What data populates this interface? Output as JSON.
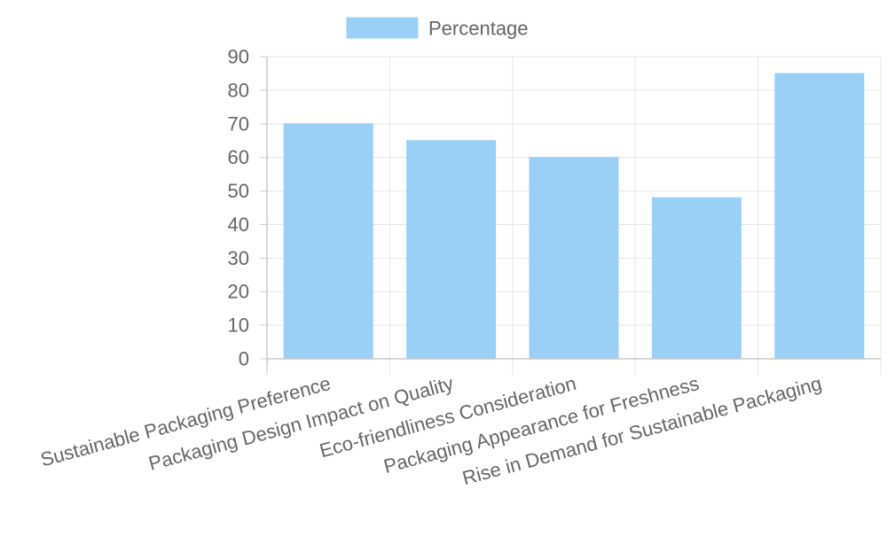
{
  "chart_data": {
    "type": "bar",
    "categories": [
      "Sustainable Packaging Preference",
      "Packaging Design Impact on Quality",
      "Eco-friendliness Consideration",
      "Packaging Appearance for Freshness",
      "Rise in Demand for Sustainable Packaging"
    ],
    "series": [
      {
        "name": "Percentage",
        "values": [
          70,
          65,
          60,
          48,
          85
        ]
      }
    ],
    "ylim": [
      0,
      90
    ],
    "yticks": [
      0,
      10,
      20,
      30,
      40,
      50,
      60,
      70,
      80,
      90
    ],
    "grid": true,
    "legend_position": "top-center",
    "colors": {
      "bar_fill": "#9ad0f5",
      "bar_stroke": "#9ad0f5",
      "grid": "#e5e5e5",
      "axis": "#c8c8c8",
      "text": "#666666"
    }
  }
}
